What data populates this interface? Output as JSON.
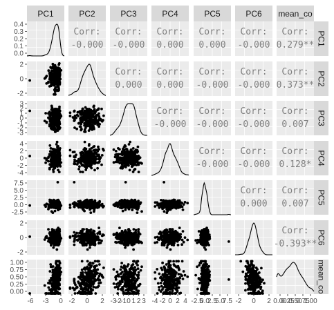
{
  "chart_data": {
    "type": "scatter",
    "variables": [
      "PC1",
      "PC2",
      "PC3",
      "PC4",
      "PC5",
      "PC6",
      "mean_co"
    ],
    "strip_labels_top": [
      "PC1",
      "PC2",
      "PC3",
      "PC4",
      "PC5",
      "PC6",
      "mean_co"
    ],
    "strip_labels_right": [
      "PC1",
      "PC2",
      "PC3",
      "PC4",
      "PC5",
      "PC6",
      "mean_co"
    ],
    "ranges": [
      [
        -7.5,
        1.8
      ],
      [
        -3.5,
        3.2
      ],
      [
        -3.3,
        3.3
      ],
      [
        -4.6,
        4.6
      ],
      [
        -3.5,
        8.5
      ],
      [
        -4.5,
        4.5
      ],
      [
        0,
        1.05
      ]
    ],
    "y_ticks": {
      "PC1": [
        "0.4",
        "0.3",
        "0.2",
        "0.1",
        "0.0"
      ],
      "PC2": [
        "2",
        "0",
        "-2"
      ],
      "PC3": [
        "3",
        "2",
        "1",
        "0",
        "-1",
        "-2",
        "-3"
      ],
      "PC4": [
        "4",
        "2",
        "0",
        "-2",
        "-4"
      ],
      "PC5": [
        "7.5",
        "5.0",
        "2.5",
        "0.0",
        "-2.5"
      ],
      "PC6": [
        "2",
        "0",
        "-2"
      ],
      "mean_co": [
        "1.00",
        "0.75",
        "0.50",
        "0.25",
        "0.00"
      ]
    },
    "x_ticks": [
      [
        "-6",
        "-3",
        "0"
      ],
      [
        "-2",
        "0",
        "2"
      ],
      [
        "-3",
        "-2",
        "-1",
        "0",
        "1",
        "2",
        "3"
      ],
      [
        "-4",
        "-2",
        "0",
        "2",
        "4"
      ],
      [
        "-2.5",
        "0.0",
        "2.5",
        "5.0",
        "7.5"
      ],
      [
        "-2",
        "0",
        "2"
      ],
      [
        "0.00",
        "0.25",
        "0.50",
        "0.75",
        "1.00"
      ]
    ],
    "density_peaks": [
      0.4,
      null,
      null,
      null,
      null,
      null,
      null
    ],
    "corr_label": "Corr:",
    "correlations": [
      {
        "row": 0,
        "col": 1,
        "value": "-0.000"
      },
      {
        "row": 0,
        "col": 2,
        "value": "-0.000"
      },
      {
        "row": 0,
        "col": 3,
        "value": "0.000"
      },
      {
        "row": 0,
        "col": 4,
        "value": "0.000"
      },
      {
        "row": 0,
        "col": 5,
        "value": "-0.000"
      },
      {
        "row": 0,
        "col": 6,
        "value": "0.279**"
      },
      {
        "row": 1,
        "col": 2,
        "value": "0.000"
      },
      {
        "row": 1,
        "col": 3,
        "value": "0.000"
      },
      {
        "row": 1,
        "col": 4,
        "value": "-0.000"
      },
      {
        "row": 1,
        "col": 5,
        "value": "-0.000"
      },
      {
        "row": 1,
        "col": 6,
        "value": "0.373**"
      },
      {
        "row": 2,
        "col": 3,
        "value": "-0.000"
      },
      {
        "row": 2,
        "col": 4,
        "value": "-0.000"
      },
      {
        "row": 2,
        "col": 5,
        "value": "-0.000"
      },
      {
        "row": 2,
        "col": 6,
        "value": "0.007"
      },
      {
        "row": 3,
        "col": 4,
        "value": "-0.000"
      },
      {
        "row": 3,
        "col": 5,
        "value": "-0.000"
      },
      {
        "row": 3,
        "col": 6,
        "value": "0.128*"
      },
      {
        "row": 4,
        "col": 5,
        "value": "0.000"
      },
      {
        "row": 4,
        "col": 6,
        "value": "0.007"
      },
      {
        "row": 5,
        "col": 6,
        "value": "-0.393**"
      }
    ],
    "colors": {
      "strip_bg": "#d9d9d9",
      "panel_bg": "#ebebeb",
      "grid_major": "#ffffff",
      "points": "#000000",
      "corr_text": "#7f7f7f"
    }
  }
}
